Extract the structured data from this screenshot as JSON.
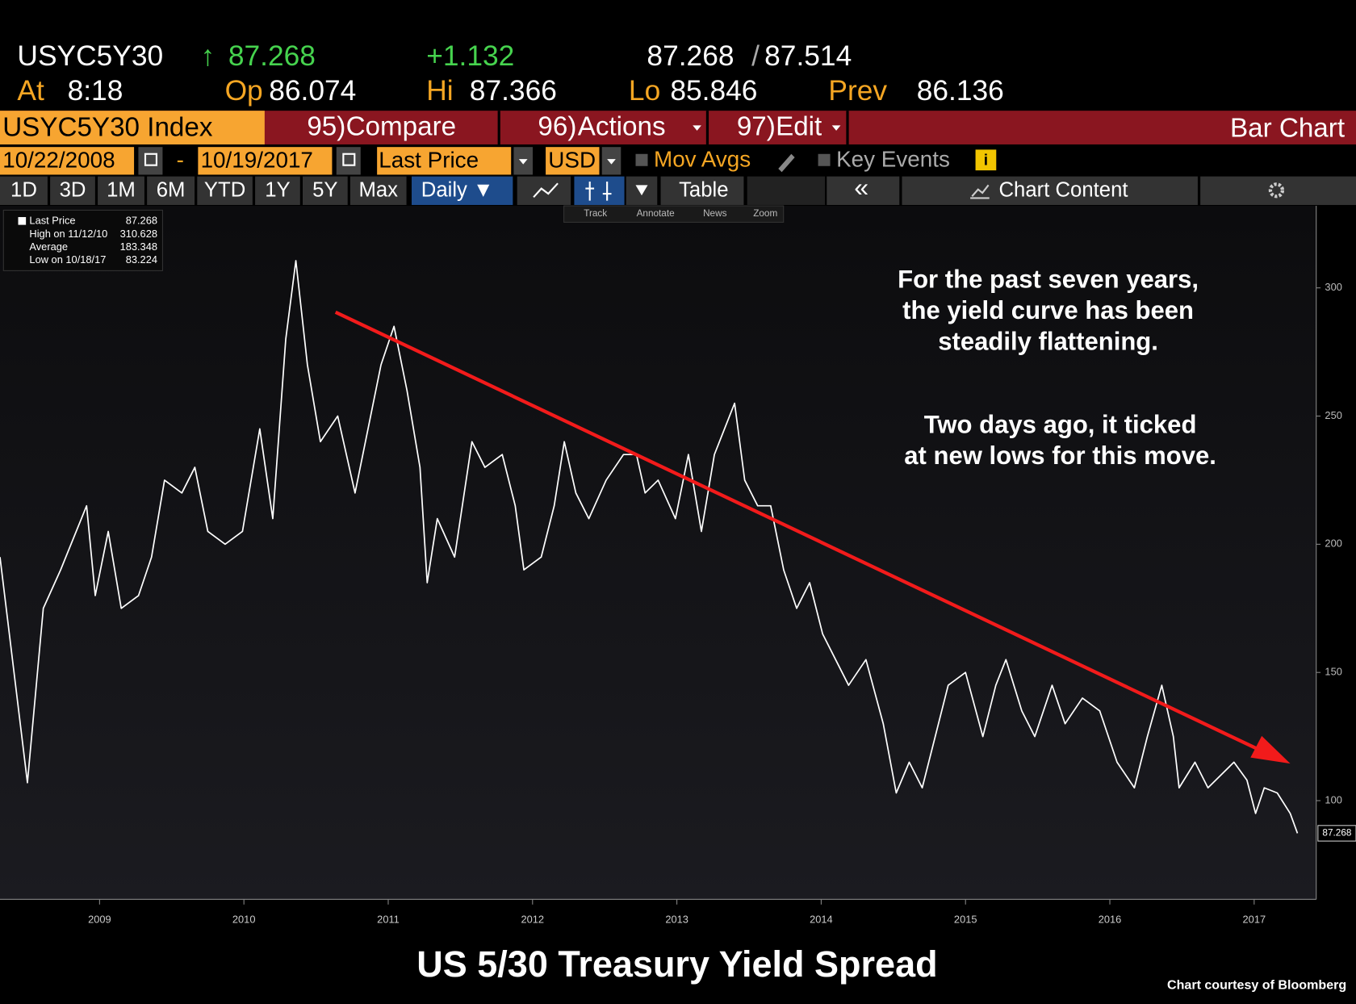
{
  "header": {
    "ticker": "USYC5Y30",
    "arrow": "↑",
    "last": "87.268",
    "change": "+1.132",
    "bid": "87.268",
    "slash": "/",
    "ask": "87.514",
    "fields": [
      {
        "label": "At",
        "value": "8:18"
      },
      {
        "label": "Op",
        "value": "86.074"
      },
      {
        "label": "Hi",
        "value": "87.366"
      },
      {
        "label": "Lo",
        "value": "85.846"
      },
      {
        "label": "Prev",
        "value": "86.136"
      }
    ]
  },
  "toolbar": {
    "security": "USYC5Y30 Index",
    "menus": [
      {
        "key": "95)",
        "label": "Compare"
      },
      {
        "key": "96)",
        "label": "Actions"
      },
      {
        "key": "97)",
        "label": "Edit"
      }
    ],
    "view": "Bar Chart"
  },
  "settings": {
    "start": "10/22/2008",
    "dash": "-",
    "end": "10/19/2017",
    "field": "Last Price",
    "currency": "USD",
    "mov_avgs": "Mov Avgs",
    "key_events": "Key Events"
  },
  "ranges": [
    "1D",
    "3D",
    "1M",
    "6M",
    "YTD",
    "1Y",
    "5Y",
    "Max"
  ],
  "period": "Daily ▼",
  "table": "Table",
  "collapse": "«",
  "chart_content": "Chart Content",
  "tools": [
    "Track",
    "Annotate",
    "News",
    "Zoom"
  ],
  "legend": [
    {
      "label": "Last Price",
      "value": "87.268"
    },
    {
      "label": "High on 11/12/10",
      "value": "310.628"
    },
    {
      "label": "Average",
      "value": "183.348"
    },
    {
      "label": "Low on 10/18/17",
      "value": "83.224"
    }
  ],
  "chart_data": {
    "type": "line",
    "title": "US 5/30 Treasury Yield Spread",
    "source": "Chart courtesy of Bloomberg",
    "annotations": [
      [
        "For the past seven years,",
        "the yield curve has been",
        "steadily flattening."
      ],
      [
        "Two days ago, it ticked",
        "at new lows for this move."
      ]
    ],
    "x": [
      2008.81,
      2009.0,
      2009.11,
      2009.23,
      2009.41,
      2009.47,
      2009.56,
      2009.65,
      2009.77,
      2009.86,
      2009.95,
      2010.07,
      2010.16,
      2010.25,
      2010.37,
      2010.49,
      2010.61,
      2010.7,
      2010.79,
      2010.86,
      2010.94,
      2011.03,
      2011.15,
      2011.27,
      2011.36,
      2011.45,
      2011.54,
      2011.63,
      2011.72,
      2011.77,
      2011.84,
      2011.96,
      2012.08,
      2012.17,
      2012.29,
      2012.38,
      2012.44,
      2012.56,
      2012.65,
      2012.72,
      2012.8,
      2012.89,
      2013.01,
      2013.13,
      2013.22,
      2013.28,
      2013.37,
      2013.49,
      2013.58,
      2013.67,
      2013.76,
      2013.9,
      2013.97,
      2014.06,
      2014.15,
      2014.24,
      2014.33,
      2014.42,
      2014.51,
      2014.6,
      2014.69,
      2014.81,
      2014.93,
      2015.02,
      2015.11,
      2015.2,
      2015.29,
      2015.38,
      2015.5,
      2015.62,
      2015.71,
      2015.78,
      2015.89,
      2015.98,
      2016.1,
      2016.19,
      2016.31,
      2016.43,
      2016.55,
      2016.67,
      2016.76,
      2016.86,
      2016.94,
      2016.98,
      2017.09,
      2017.18,
      2017.27,
      2017.36,
      2017.45,
      2017.51,
      2017.57,
      2017.66,
      2017.75,
      2017.8
    ],
    "series": [
      {
        "name": "Last Price",
        "color": "#ffffff",
        "values": [
          195,
          107,
          175,
          190,
          215,
          180,
          205,
          175,
          180,
          195,
          225,
          220,
          230,
          205,
          200,
          205,
          245,
          210,
          280,
          310.628,
          270,
          240,
          250,
          220,
          245,
          270,
          285,
          260,
          230,
          185,
          210,
          195,
          240,
          230,
          235,
          215,
          190,
          195,
          215,
          240,
          220,
          210,
          225,
          235,
          235,
          220,
          225,
          210,
          235,
          205,
          235,
          255,
          225,
          215,
          215,
          190,
          175,
          185,
          165,
          155,
          145,
          155,
          130,
          103,
          115,
          105,
          125,
          145,
          150,
          125,
          145,
          155,
          135,
          125,
          145,
          130,
          140,
          135,
          115,
          105,
          125,
          145,
          125,
          105,
          115,
          105,
          110,
          115,
          108,
          95,
          105,
          103,
          95,
          87.268
        ]
      }
    ],
    "xlim": [
      2008.81,
      2017.93
    ],
    "ylim": [
      61.5,
      332
    ],
    "xticks": [
      {
        "value": 2009.5,
        "label": "2009"
      },
      {
        "value": 2010.5,
        "label": "2010"
      },
      {
        "value": 2011.5,
        "label": "2011"
      },
      {
        "value": 2012.5,
        "label": "2012"
      },
      {
        "value": 2013.5,
        "label": "2013"
      },
      {
        "value": 2014.5,
        "label": "2014"
      },
      {
        "value": 2015.5,
        "label": "2015"
      },
      {
        "value": 2016.5,
        "label": "2016"
      },
      {
        "value": 2017.5,
        "label": "2017"
      }
    ],
    "yticks": [
      100,
      150,
      200,
      250,
      300
    ]
  }
}
